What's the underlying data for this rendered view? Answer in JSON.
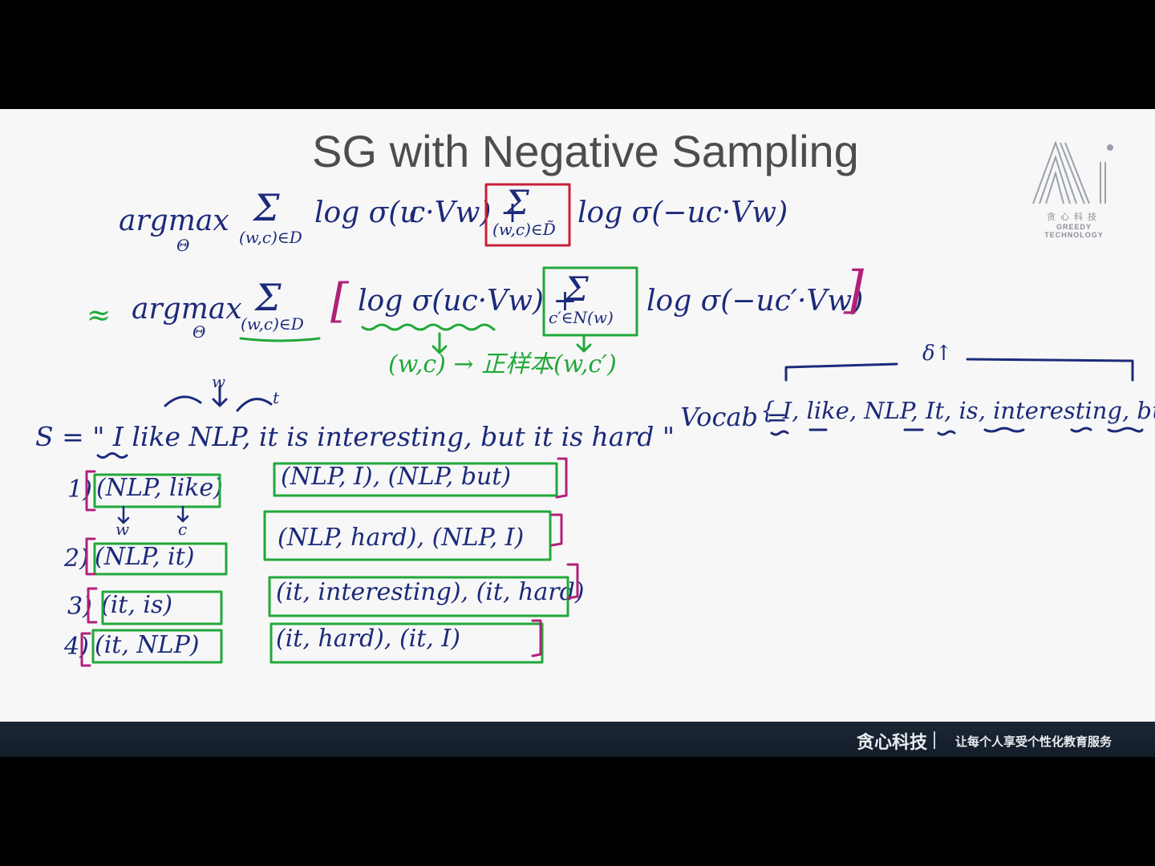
{
  "slide": {
    "title": "SG with Negative Sampling",
    "logo": {
      "text_cn": "贪心科技",
      "text_en": "GREEDY TECHNOLOGY",
      "icon": "ai-logo-icon"
    },
    "equation1": {
      "argmax": "argmax",
      "theta": "Θ",
      "sum1": "Σ",
      "sub1": "(w,c)∈D",
      "term1": "log σ(u",
      "term1_rest": "c·Vw) +",
      "sum2": "Σ",
      "sub2": "(w,c)∈D̃",
      "term2": "log σ(−uc·Vw)"
    },
    "equation2": {
      "approx": "≈",
      "argmax": "argmax",
      "theta": "Θ",
      "sum1": "Σ",
      "sub1": "(w,c)∈D",
      "open": "[",
      "term1": "log σ(uc·Vw) +",
      "sum2": "Σ",
      "sub2": "c′∈N(w)",
      "term2": "log σ(−uc′·Vw)",
      "close": "]"
    },
    "notes": {
      "positive": "(w,c) → 正样本",
      "negative": "(w,c′)",
      "w_mark": "w",
      "t_mark": "t",
      "w_below": "w",
      "c_below": "c",
      "delta": "δ↑"
    },
    "sentence": "S = \" I  like NLP, it is interesting, but it is hard \"",
    "vocab_label": "Vocab =",
    "vocab": "{ I, like, NLP, It, is, interesting, but, hard }",
    "pairs": [
      {
        "num": "1)",
        "pos": "(NLP, like)",
        "neg": "(NLP, I), (NLP, but)"
      },
      {
        "num": "2)",
        "pos": "(NLP, it)",
        "neg": "(NLP, hard), (NLP, I)"
      },
      {
        "num": "3)",
        "pos": "(it, is)",
        "neg": "(it, interesting), (it, hard)"
      },
      {
        "num": "4)",
        "pos": "(it, NLP)",
        "neg": "(it, hard), (it, I)"
      }
    ]
  },
  "footer": {
    "brand": "贪心科技",
    "slogan": "让每个人享受个性化教育服务"
  },
  "colors": {
    "ink": "#1c2a7a",
    "green": "#22a83a",
    "red": "#c8203a",
    "magenta": "#b0227a",
    "title": "#4d4d4d"
  }
}
